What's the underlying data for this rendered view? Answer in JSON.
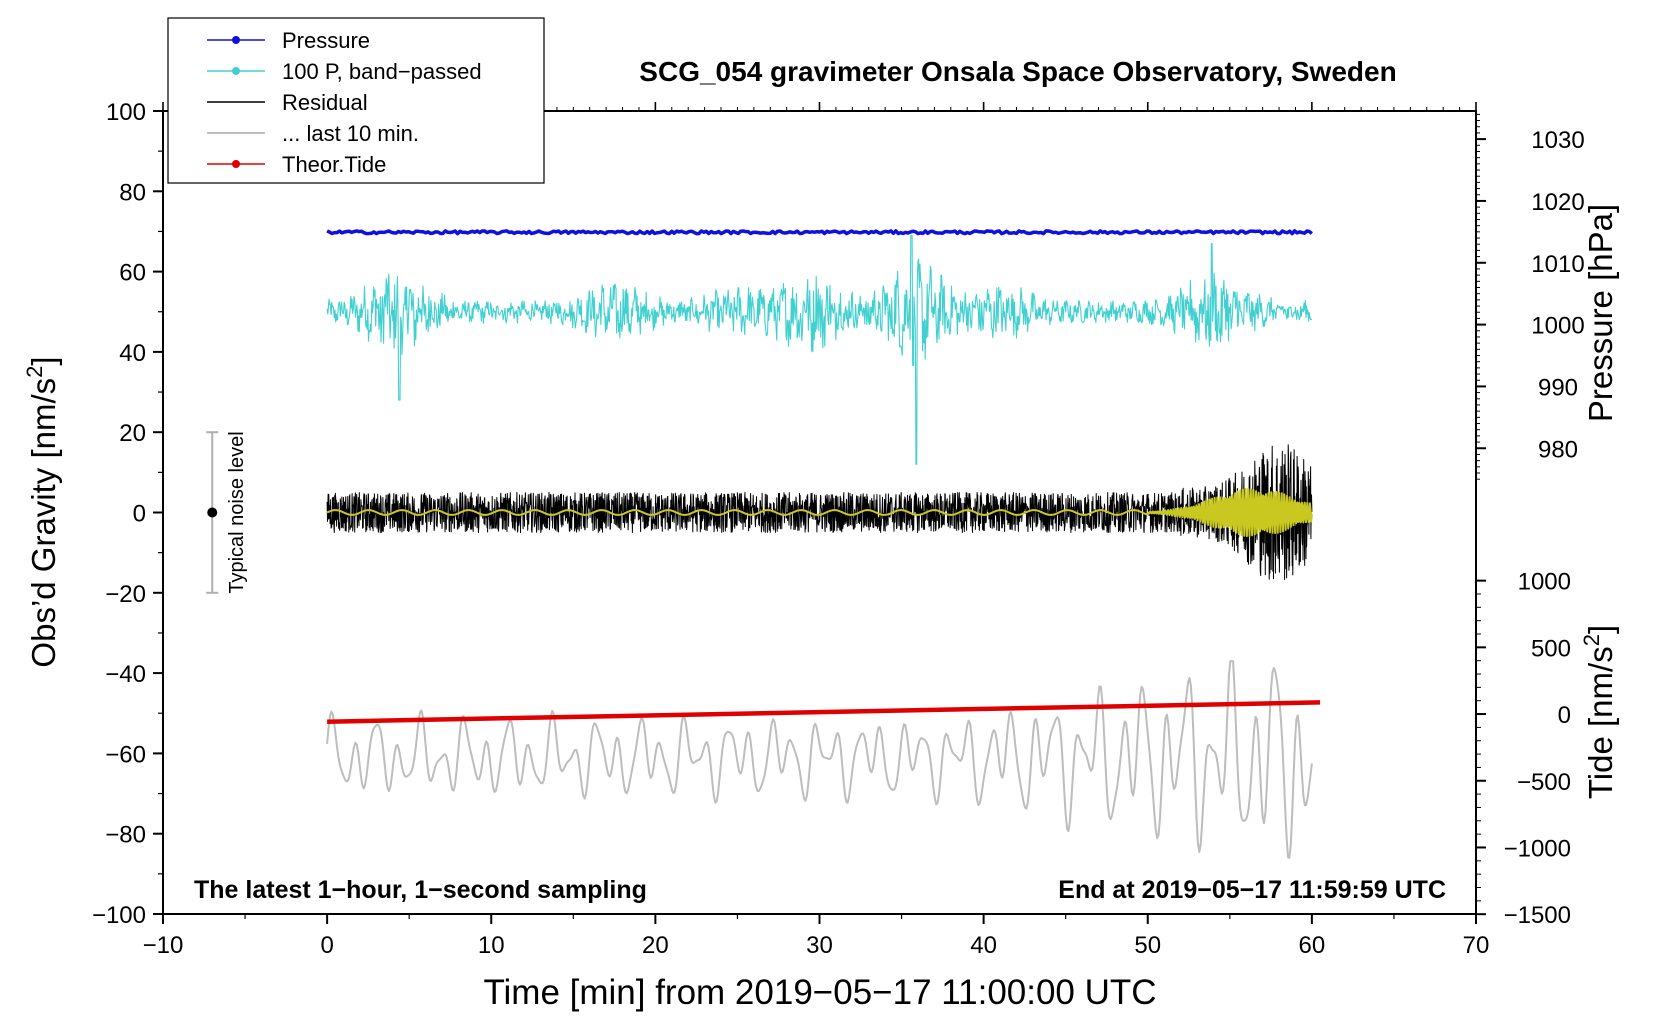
{
  "chart_data": {
    "type": "line",
    "title": "SCG_054 gravimeter Onsala Space Observatory, Sweden",
    "xlabel": "Time [min] from 2019−05−17 11:00:00 UTC",
    "ylabel_left": "Obs’d Gravity [nm/s",
    "ylabel_left_sup": "2",
    "ylabel_left_close": "]",
    "ylabel_pressure": "Pressure [hPa]",
    "ylabel_tide": "Tide [nm/s",
    "ylabel_tide_sup": "2",
    "ylabel_tide_close": "]",
    "xlim": [
      -10,
      70
    ],
    "ylim": [
      -100,
      100
    ],
    "x_ticks": [
      "−10",
      "0",
      "10",
      "20",
      "30",
      "40",
      "50",
      "60",
      "70"
    ],
    "x_tick_values": [
      -10,
      0,
      10,
      20,
      30,
      40,
      50,
      60,
      70
    ],
    "y_ticks": [
      "−100",
      "−80",
      "−60",
      "−40",
      "−20",
      "0",
      "20",
      "40",
      "60",
      "80",
      "100"
    ],
    "y_tick_values": [
      -100,
      -80,
      -60,
      -40,
      -20,
      0,
      20,
      40,
      60,
      80,
      100
    ],
    "pressure_axis": {
      "ticks": [
        "980",
        "990",
        "1000",
        "1010",
        "1020",
        "1030"
      ],
      "values": [
        980,
        990,
        1000,
        1010,
        1020,
        1030
      ],
      "gravity_equiv_at_1000": 46.8,
      "gravity_per_hpa": 1.54
    },
    "tide_axis": {
      "ticks": [
        "−1500",
        "−1000",
        "−500",
        "0",
        "500",
        "1000"
      ],
      "values": [
        -1500,
        -1000,
        -500,
        0,
        500,
        1000
      ],
      "gravity_equiv_at_0": -50.2,
      "gravity_per_unit": 0.03323
    },
    "legend": [
      {
        "label": "Pressure",
        "color": "#1010e0",
        "marker": true
      },
      {
        "label": "100 P, band−passed",
        "color": "#40d0d0",
        "marker": true
      },
      {
        "label": "Residual",
        "color": "#000000",
        "marker": false
      },
      {
        "label": "... last 10 min.",
        "color": "#bdbdbd",
        "marker": false
      },
      {
        "label": "Theor.Tide",
        "color": "#e00000",
        "marker": true
      }
    ],
    "series": [
      {
        "name": "Pressure",
        "color": "#1010e0",
        "x_range": [
          0,
          60
        ],
        "baseline_gravity_units": 69.8,
        "noise": 0.35
      },
      {
        "name": "100 P, band−passed",
        "color": "#40d0d0",
        "x_range": [
          0,
          60
        ],
        "baseline_gravity_units": 50,
        "amplitude_range": [
          3,
          20
        ],
        "min": 12,
        "max": 69
      },
      {
        "name": "Residual",
        "color": "#000000",
        "x_range": [
          0,
          60
        ],
        "baseline_gravity_units": 0,
        "amplitude_range": [
          6,
          24
        ],
        "min": -24,
        "max": 24
      },
      {
        "name": "Residual smoothed",
        "color": "#c8c820",
        "x_range": [
          0,
          60
        ],
        "baseline_gravity_units": 0
      },
      {
        "name": "... last 10 min.",
        "color": "#bdbdbd",
        "x_range": [
          0,
          60
        ],
        "baseline_gravity_units": -61,
        "min": -86,
        "max": -37
      },
      {
        "name": "Theor.Tide",
        "color": "#e00000",
        "x": [
          0,
          60.5
        ],
        "y": [
          -52.1,
          -47.3
        ]
      }
    ],
    "noise_bar": {
      "label": "Typical noise level",
      "x": -7,
      "y": 0,
      "ymin": -20,
      "ymax": 20
    },
    "annotation_left": "The latest 1−hour, 1−second sampling",
    "annotation_right": "End at 2019−05−17 11:59:59 UTC"
  }
}
